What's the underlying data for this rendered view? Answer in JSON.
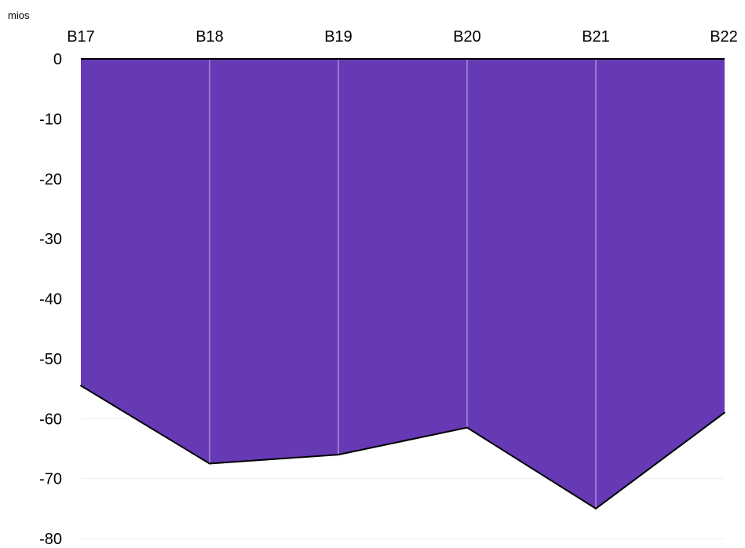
{
  "chart_data": {
    "type": "area",
    "unit": "mios",
    "categories": [
      "B17",
      "B18",
      "B19",
      "B20",
      "B21",
      "B22"
    ],
    "series": [
      {
        "values": [
          -54.5,
          -67.5,
          -66,
          -61.5,
          -75,
          -59
        ]
      }
    ],
    "yticks": [
      "0",
      "-10",
      "-20",
      "-30",
      "-40",
      "-50",
      "-60",
      "-70",
      "-80"
    ],
    "ylim": [
      -80,
      0
    ],
    "xaxis_position": "top",
    "grid": true,
    "colors": {
      "fill": "#6639b5",
      "line": "#000000",
      "grid": "#eeeeee",
      "divider": "#c8b8e8"
    }
  }
}
